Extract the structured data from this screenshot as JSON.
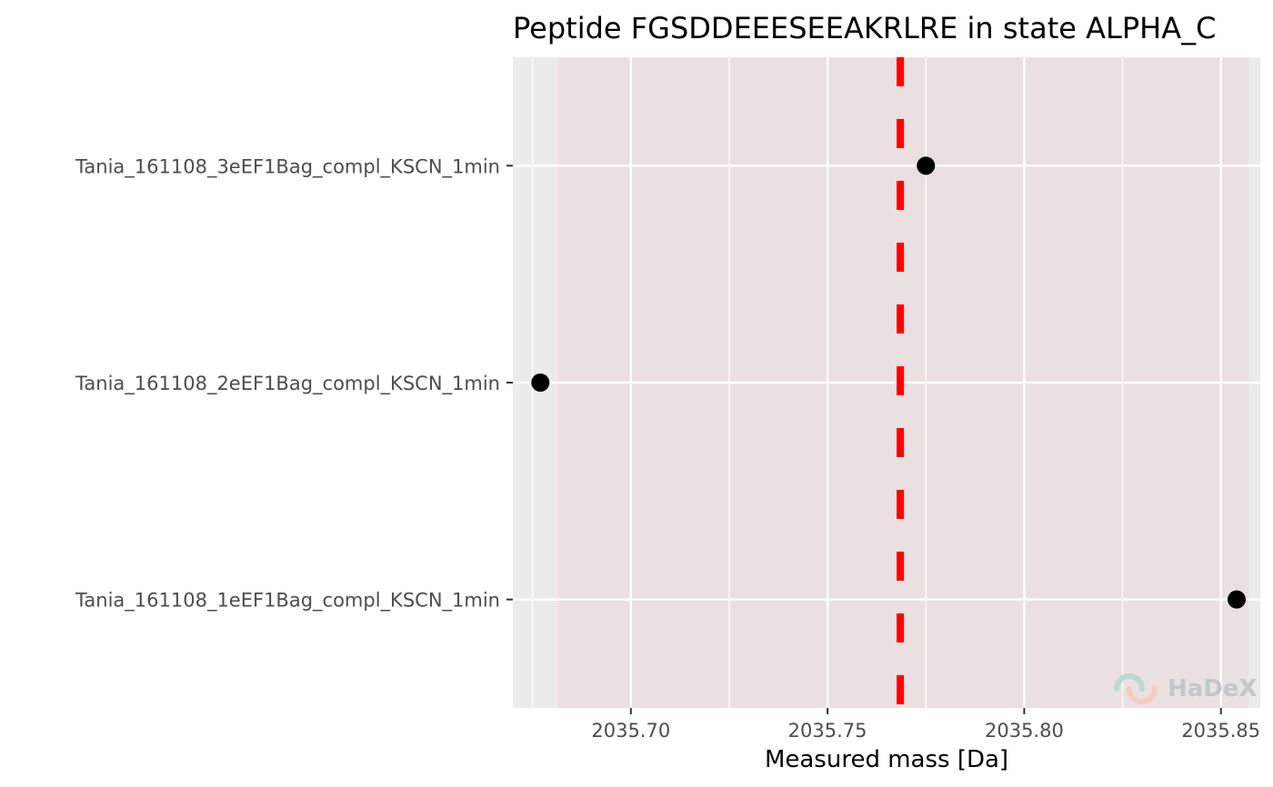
{
  "chart_data": {
    "type": "scatter",
    "title": "Peptide FGSDDEEESEEAKRLRE in state ALPHA_C",
    "xlabel": "Measured mass [Da]",
    "ylabel": "",
    "xlim": [
      2035.67,
      2035.86
    ],
    "x_ticks": [
      "2035.70",
      "2035.75",
      "2035.80",
      "2035.85"
    ],
    "categories": [
      "Tania_161108_3eEF1Bag_compl_KSCN_1min",
      "Tania_161108_2eEF1Bag_compl_KSCN_1min",
      "Tania_161108_1eEF1Bag_compl_KSCN_1min"
    ],
    "points": [
      {
        "category": "Tania_161108_3eEF1Bag_compl_KSCN_1min",
        "x": 2035.775
      },
      {
        "category": "Tania_161108_2eEF1Bag_compl_KSCN_1min",
        "x": 2035.677
      },
      {
        "category": "Tania_161108_1eEF1Bag_compl_KSCN_1min",
        "x": 2035.854
      }
    ],
    "reference_line": {
      "x": 2035.7685,
      "color": "#ff0000",
      "style": "dashed"
    },
    "shaded_band": {
      "x_range": [
        2035.6815,
        2035.857
      ],
      "color": "#ebe0e1"
    },
    "grid": true,
    "point_color": "#000000",
    "panel_background": "#ebebeb"
  },
  "watermark": {
    "text": "HaDeX",
    "icon": "hadex-logo-icon"
  }
}
